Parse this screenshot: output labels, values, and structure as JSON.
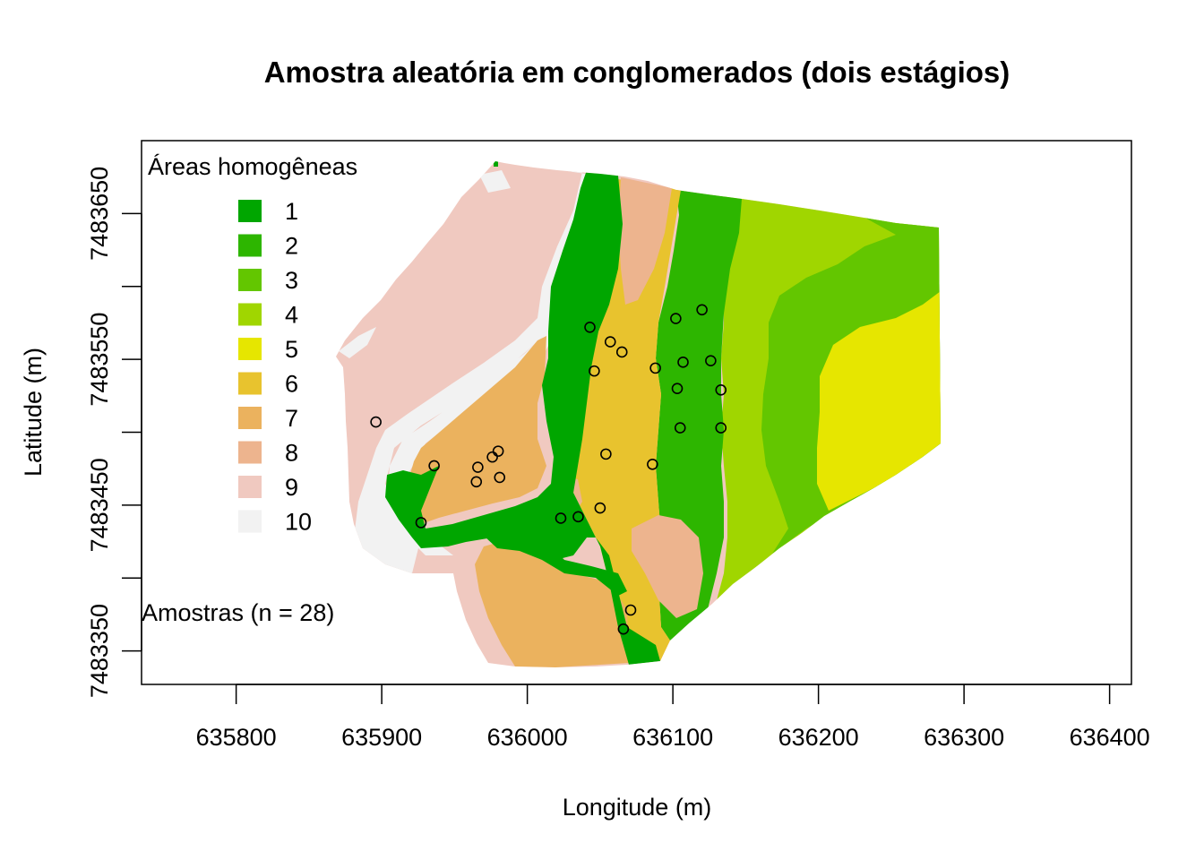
{
  "chart_data": {
    "type": "map",
    "title": "Amostra aleatória em conglomerados (dois estágios)",
    "xlabel": "Longitude (m)",
    "ylabel": "Latitude (m)",
    "xlim": [
      635735,
      636415
    ],
    "ylim": [
      7483327,
      7483700
    ],
    "x_ticks": [
      {
        "value": 635800,
        "label": "635800"
      },
      {
        "value": 635900,
        "label": "635900"
      },
      {
        "value": 636000,
        "label": "636000"
      },
      {
        "value": 636100,
        "label": "636100"
      },
      {
        "value": 636200,
        "label": "636200"
      },
      {
        "value": 636300,
        "label": "636300"
      },
      {
        "value": 636400,
        "label": "636400"
      }
    ],
    "y_ticks": [
      {
        "value": 7483350,
        "label": "7483350",
        "labeled": true
      },
      {
        "value": 7483400,
        "label": "",
        "labeled": false
      },
      {
        "value": 7483450,
        "label": "7483450",
        "labeled": true
      },
      {
        "value": 7483500,
        "label": "",
        "labeled": false
      },
      {
        "value": 7483550,
        "label": "7483550",
        "labeled": true
      },
      {
        "value": 7483600,
        "label": "",
        "labeled": false
      },
      {
        "value": 7483650,
        "label": "7483650",
        "labeled": true
      }
    ],
    "legend": {
      "title": "Áreas homogêneas",
      "position": "top-left",
      "classes": [
        {
          "label": "1",
          "color": "#00A600"
        },
        {
          "label": "2",
          "color": "#2DB600"
        },
        {
          "label": "3",
          "color": "#63C600"
        },
        {
          "label": "4",
          "color": "#A0D600"
        },
        {
          "label": "5",
          "color": "#E6E600"
        },
        {
          "label": "6",
          "color": "#E8C32E"
        },
        {
          "label": "7",
          "color": "#EBB25E"
        },
        {
          "label": "8",
          "color": "#EDB48E"
        },
        {
          "label": "9",
          "color": "#F0C9C0"
        },
        {
          "label": "10",
          "color": "#F2F2F2"
        }
      ]
    },
    "samples_label": "Amostras (n = 28)",
    "samples": [
      {
        "x": 636043,
        "y": 7483572
      },
      {
        "x": 636057,
        "y": 7483562
      },
      {
        "x": 636065,
        "y": 7483555
      },
      {
        "x": 636046,
        "y": 7483542
      },
      {
        "x": 636102,
        "y": 7483578
      },
      {
        "x": 636120,
        "y": 7483584
      },
      {
        "x": 636088,
        "y": 7483544
      },
      {
        "x": 636107,
        "y": 7483548
      },
      {
        "x": 636126,
        "y": 7483549
      },
      {
        "x": 636103,
        "y": 7483530
      },
      {
        "x": 636133,
        "y": 7483529
      },
      {
        "x": 636105,
        "y": 7483503
      },
      {
        "x": 636133,
        "y": 7483503
      },
      {
        "x": 635896,
        "y": 7483507
      },
      {
        "x": 635936,
        "y": 7483477
      },
      {
        "x": 635966,
        "y": 7483476
      },
      {
        "x": 635976,
        "y": 7483483
      },
      {
        "x": 635980,
        "y": 7483487
      },
      {
        "x": 635965,
        "y": 7483466
      },
      {
        "x": 635981,
        "y": 7483469
      },
      {
        "x": 636054,
        "y": 7483485
      },
      {
        "x": 636086,
        "y": 7483478
      },
      {
        "x": 636050,
        "y": 7483448
      },
      {
        "x": 636023,
        "y": 7483441
      },
      {
        "x": 636035,
        "y": 7483442
      },
      {
        "x": 635927,
        "y": 7483438
      },
      {
        "x": 636071,
        "y": 7483378
      },
      {
        "x": 636066,
        "y": 7483365
      }
    ],
    "grid": false
  }
}
